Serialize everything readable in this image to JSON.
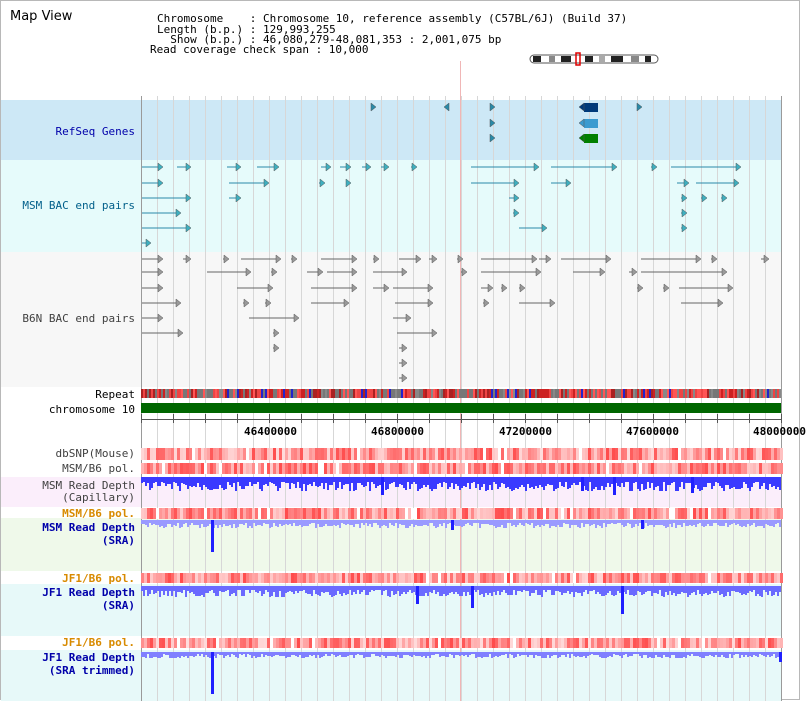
{
  "header": {
    "title": "Map View",
    "info_lines": [
      "Chromosome    : Chromosome 10, reference assembly (C57BL/6J) (Build 37)",
      "Length (b.p.) : 129,993,255",
      "  Show (b.p.) : 46,080,279-48,081,353 : 2,001,075 bp",
      "Read coverage check span : 10,000"
    ]
  },
  "tracks": {
    "refseq": "RefSeq Genes",
    "msm_bac": "MSM BAC end pairs",
    "b6n_bac": "B6N BAC end pairs",
    "repeat": "Repeat",
    "chromosome": "chromosome 10",
    "dbsnp": "dbSNP(Mouse)",
    "msm_b6_pol": "MSM/B6 pol.",
    "msm_depth_cap_1": "MSM Read Depth",
    "msm_depth_cap_2": "(Capillary)",
    "msm_b6_pol_2": "MSM/B6 pol.",
    "msm_depth_sra_1": "MSM Read Depth",
    "msm_depth_sra_2": "(SRA)",
    "jf1_pol_1": "JF1/B6 pol.",
    "jf1_depth_sra_1": "JF1 Read Depth",
    "jf1_depth_sra_2": "(SRA)",
    "jf1_pol_2": "JF1/B6 pol.",
    "jf1_depth_trim_1": "JF1 Read Depth",
    "jf1_depth_trim_2": "(SRA trimmed)"
  },
  "axis": {
    "ticks": [
      "46400000",
      "46800000",
      "47200000",
      "47600000",
      "48000000"
    ]
  },
  "colors": {
    "refseq_label": "#0000aa",
    "msm_bac_label": "#005f8a",
    "b6n_bac_label": "#404040",
    "pol_label": "#d88a00",
    "depth_label": "#0000aa",
    "chromosome_bar": "#006600",
    "depth_bar": "#4040ff"
  }
}
